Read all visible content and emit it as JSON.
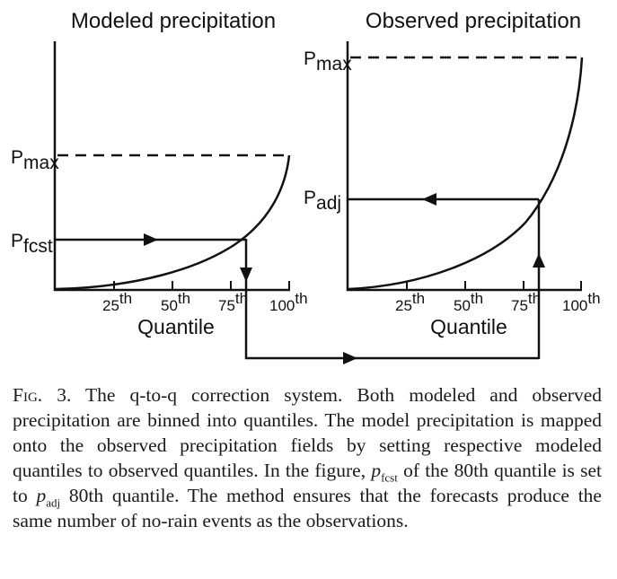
{
  "figure": {
    "left_panel": {
      "title": "Modeled precipitation",
      "pmax_label": "P",
      "pmax_sub": "max",
      "pfcst_label": "P",
      "pfcst_sub": "fcst",
      "xlabel": "Quantile",
      "ticks": [
        {
          "num": "25",
          "sup": "th"
        },
        {
          "num": "50",
          "sup": "th"
        },
        {
          "num": "75",
          "sup": "th"
        },
        {
          "num": "100",
          "sup": "th"
        }
      ]
    },
    "right_panel": {
      "title": "Observed precipitation",
      "pmax_label": "P",
      "pmax_sub": "max",
      "padj_label": "P",
      "padj_sub": "adj",
      "xlabel": "Quantile",
      "ticks": [
        {
          "num": "25",
          "sup": "th"
        },
        {
          "num": "50",
          "sup": "th"
        },
        {
          "num": "75",
          "sup": "th"
        },
        {
          "num": "100",
          "sup": "th"
        }
      ]
    }
  },
  "caption": {
    "label": "Fig. 3.",
    "part1": " The q-to-q correction system. Both modeled and observed precipitation are binned into quantiles. The model precipitation is mapped onto the observed precipitation fields by setting respective modeled quantiles to observed quantiles. In the figure, ",
    "var1": "p",
    "var1_sub": "fcst",
    "part2": " of the 80th quantile is set to ",
    "var2": "p",
    "var2_sub": "adj",
    "part3": " 80th quantile. The method ensures that the forecasts produce the same number of no-rain events as the observations."
  }
}
